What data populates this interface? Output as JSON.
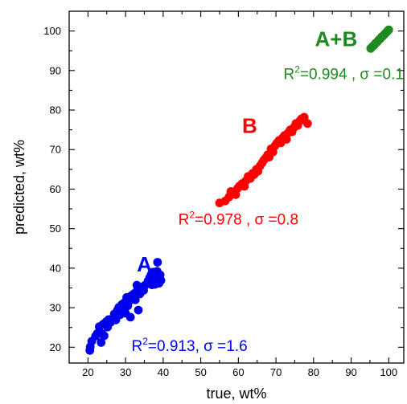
{
  "chart_data": {
    "type": "scatter",
    "xlabel": "true, wt%",
    "ylabel": "predicted, wt%",
    "xlim": [
      15,
      104
    ],
    "ylim": [
      16,
      105
    ],
    "xticks": [
      20,
      30,
      40,
      50,
      60,
      70,
      80,
      90,
      100
    ],
    "yticks": [
      20,
      30,
      40,
      50,
      60,
      70,
      80,
      90,
      100
    ],
    "grid": false,
    "series": [
      {
        "name": "A",
        "color": "#0000ee",
        "stat": {
          "r2": "0.913",
          "sigma": "1.6"
        },
        "points": [
          [
            20.5,
            19.2
          ],
          [
            20.6,
            20.1
          ],
          [
            21.0,
            21.5
          ],
          [
            22.0,
            22.8
          ],
          [
            22.5,
            23.5
          ],
          [
            23.0,
            25.2
          ],
          [
            23.5,
            21.2
          ],
          [
            23.8,
            23.4
          ],
          [
            24.0,
            25.8
          ],
          [
            24.3,
            22.9
          ],
          [
            24.8,
            26.4
          ],
          [
            25.2,
            25.1
          ],
          [
            25.5,
            27.0
          ],
          [
            26.0,
            26.3
          ],
          [
            26.5,
            27.2
          ],
          [
            27.0,
            28.4
          ],
          [
            27.4,
            26.9
          ],
          [
            27.8,
            29.3
          ],
          [
            28.2,
            30.1
          ],
          [
            28.5,
            28.2
          ],
          [
            29.0,
            30.8
          ],
          [
            29.3,
            29.6
          ],
          [
            29.6,
            31.2
          ],
          [
            30.0,
            28.6
          ],
          [
            30.3,
            32.6
          ],
          [
            30.6,
            30.5
          ],
          [
            31.0,
            31.7
          ],
          [
            31.3,
            27.6
          ],
          [
            31.6,
            33.1
          ],
          [
            32.0,
            32.4
          ],
          [
            32.3,
            33.6
          ],
          [
            32.6,
            32.0
          ],
          [
            33.0,
            35.7
          ],
          [
            33.2,
            34.6
          ],
          [
            33.4,
            29.4
          ],
          [
            33.8,
            33.5
          ],
          [
            34.2,
            35.2
          ],
          [
            34.8,
            34.4
          ],
          [
            35.2,
            35.7
          ],
          [
            36.0,
            36.8
          ],
          [
            36.4,
            37.6
          ],
          [
            36.8,
            38.4
          ],
          [
            37.0,
            35.8
          ],
          [
            37.3,
            39.0
          ],
          [
            37.5,
            37.2
          ],
          [
            37.8,
            35.9
          ],
          [
            38.0,
            38.6
          ],
          [
            38.2,
            37.9
          ],
          [
            38.4,
            39.2
          ],
          [
            38.5,
            41.5
          ],
          [
            38.7,
            37.0
          ],
          [
            38.9,
            36.2
          ],
          [
            39.2,
            38.3
          ],
          [
            39.4,
            36.9
          ]
        ]
      },
      {
        "name": "B",
        "color": "#ff0000",
        "stat": {
          "r2": "0.978",
          "sigma": "0.8"
        },
        "points": [
          [
            55.0,
            56.5
          ],
          [
            56.5,
            57.0
          ],
          [
            57.5,
            58.0
          ],
          [
            58.0,
            59.4
          ],
          [
            58.8,
            59.0
          ],
          [
            59.3,
            58.6
          ],
          [
            59.8,
            60.2
          ],
          [
            60.3,
            60.8
          ],
          [
            61.0,
            61.4
          ],
          [
            61.6,
            60.7
          ],
          [
            62.0,
            62.1
          ],
          [
            62.6,
            63.2
          ],
          [
            63.2,
            62.7
          ],
          [
            63.8,
            64.0
          ],
          [
            64.2,
            63.7
          ],
          [
            64.8,
            65.0
          ],
          [
            65.2,
            64.5
          ],
          [
            65.8,
            65.9
          ],
          [
            66.3,
            66.6
          ],
          [
            66.8,
            67.4
          ],
          [
            67.3,
            67.9
          ],
          [
            67.8,
            68.7
          ],
          [
            68.2,
            68.1
          ],
          [
            68.7,
            70.2
          ],
          [
            69.2,
            69.4
          ],
          [
            69.7,
            70.9
          ],
          [
            70.2,
            71.6
          ],
          [
            70.8,
            72.3
          ],
          [
            71.3,
            71.7
          ],
          [
            71.8,
            73.0
          ],
          [
            72.3,
            73.6
          ],
          [
            72.8,
            72.6
          ],
          [
            73.3,
            74.3
          ],
          [
            73.8,
            75.0
          ],
          [
            74.3,
            74.5
          ],
          [
            74.8,
            75.6
          ],
          [
            75.3,
            76.6
          ],
          [
            75.8,
            76.1
          ],
          [
            76.3,
            77.2
          ],
          [
            76.8,
            77.8
          ],
          [
            77.5,
            78.2
          ],
          [
            78.4,
            76.6
          ]
        ]
      },
      {
        "name": "A+B",
        "color": "#1f8a1f",
        "stat": {
          "r2": "0.994",
          "sigma": "0.1"
        },
        "points": [
          [
            95.2,
            95.6
          ],
          [
            95.7,
            96.1
          ],
          [
            96.1,
            96.4
          ],
          [
            96.5,
            96.9
          ],
          [
            96.9,
            97.2
          ],
          [
            97.3,
            97.7
          ],
          [
            97.7,
            98.0
          ],
          [
            98.1,
            98.5
          ],
          [
            98.5,
            98.8
          ],
          [
            98.9,
            99.2
          ],
          [
            99.3,
            99.6
          ],
          [
            99.7,
            100.0
          ],
          [
            100.0,
            100.3
          ]
        ]
      }
    ]
  }
}
